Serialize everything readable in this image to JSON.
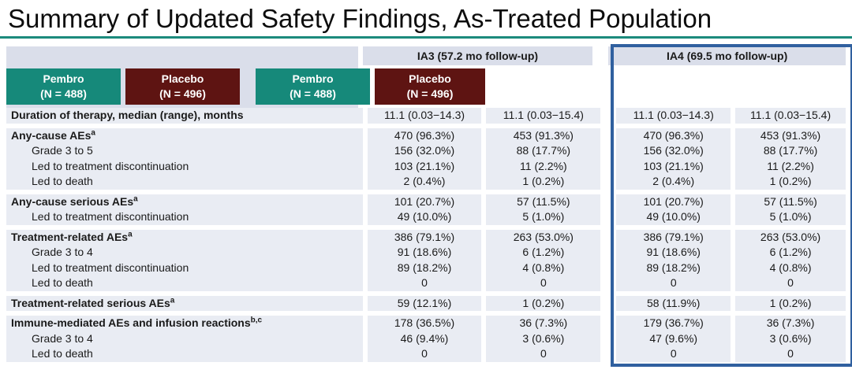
{
  "title": "Summary of Updated Safety Findings, As-Treated Population",
  "colors": {
    "title_rule_teal": "#1b8a7c",
    "pembro_teal": "#16897a",
    "placebo_maroon": "#5e1412",
    "ia4_highlight_blue": "#30609f",
    "row_bg": "#e9ecf3",
    "header_band_bg": "#dadeea"
  },
  "header": {
    "ia3_label": "IA3 (57.2 mo follow-up)",
    "ia4_label": "IA4 (69.5 mo follow-up)",
    "subcolumns": [
      {
        "name": "Pembro",
        "n": "(N = 488)"
      },
      {
        "name": "Placebo",
        "n": "(N = 496)"
      },
      {
        "name": "Pembro",
        "n": "(N = 488)"
      },
      {
        "name": "Placebo",
        "n": "(N = 496)"
      }
    ]
  },
  "groups": [
    {
      "rows": [
        {
          "label": "Duration of therapy, median (range), months",
          "sup": "",
          "bold": true,
          "indent": false,
          "values": [
            "11.1 (0.03−14.3)",
            "11.1 (0.03−15.4)",
            "11.1 (0.03−14.3)",
            "11.1 (0.03−15.4)"
          ]
        }
      ]
    },
    {
      "rows": [
        {
          "label": "Any-cause AEs",
          "sup": "a",
          "bold": true,
          "indent": false,
          "values": [
            "470 (96.3%)",
            "453 (91.3%)",
            "470 (96.3%)",
            "453 (91.3%)"
          ]
        },
        {
          "label": "Grade 3 to 5",
          "sup": "",
          "bold": false,
          "indent": true,
          "values": [
            "156 (32.0%)",
            "88 (17.7%)",
            "156 (32.0%)",
            "88 (17.7%)"
          ]
        },
        {
          "label": "Led to treatment discontinuation",
          "sup": "",
          "bold": false,
          "indent": true,
          "values": [
            "103 (21.1%)",
            "11 (2.2%)",
            "103 (21.1%)",
            "11 (2.2%)"
          ]
        },
        {
          "label": "Led to death",
          "sup": "",
          "bold": false,
          "indent": true,
          "values": [
            "2 (0.4%)",
            "1 (0.2%)",
            "2 (0.4%)",
            "1 (0.2%)"
          ]
        }
      ]
    },
    {
      "rows": [
        {
          "label": "Any-cause serious AEs",
          "sup": "a",
          "bold": true,
          "indent": false,
          "values": [
            "101 (20.7%)",
            "57 (11.5%)",
            "101 (20.7%)",
            "57 (11.5%)"
          ]
        },
        {
          "label": "Led to treatment discontinuation",
          "sup": "",
          "bold": false,
          "indent": true,
          "values": [
            "49 (10.0%)",
            "5 (1.0%)",
            "49 (10.0%)",
            "5 (1.0%)"
          ]
        }
      ]
    },
    {
      "rows": [
        {
          "label": "Treatment-related AEs",
          "sup": "a",
          "bold": true,
          "indent": false,
          "values": [
            "386 (79.1%)",
            "263 (53.0%)",
            "386 (79.1%)",
            "263 (53.0%)"
          ]
        },
        {
          "label": "Grade 3 to 4",
          "sup": "",
          "bold": false,
          "indent": true,
          "values": [
            "91 (18.6%)",
            "6 (1.2%)",
            "91 (18.6%)",
            "6 (1.2%)"
          ]
        },
        {
          "label": "Led to treatment discontinuation",
          "sup": "",
          "bold": false,
          "indent": true,
          "values": [
            "89 (18.2%)",
            "4 (0.8%)",
            "89 (18.2%)",
            "4 (0.8%)"
          ]
        },
        {
          "label": "Led to death",
          "sup": "",
          "bold": false,
          "indent": true,
          "values": [
            "0",
            "0",
            "0",
            "0"
          ]
        }
      ]
    },
    {
      "rows": [
        {
          "label": "Treatment-related serious AEs",
          "sup": "a",
          "bold": true,
          "indent": false,
          "values": [
            "59 (12.1%)",
            "1 (0.2%)",
            "58 (11.9%)",
            "1 (0.2%)"
          ]
        }
      ]
    },
    {
      "rows": [
        {
          "label": "Immune-mediated AEs and infusion reactions",
          "sup": "b,c",
          "bold": true,
          "indent": false,
          "values": [
            "178 (36.5%)",
            "36 (7.3%)",
            "179 (36.7%)",
            "36 (7.3%)"
          ]
        },
        {
          "label": "Grade 3 to 4",
          "sup": "",
          "bold": false,
          "indent": true,
          "values": [
            "46 (9.4%)",
            "3 (0.6%)",
            "47 (9.6%)",
            "3 (0.6%)"
          ]
        },
        {
          "label": "Led to death",
          "sup": "",
          "bold": false,
          "indent": true,
          "values": [
            "0",
            "0",
            "0",
            "0"
          ]
        }
      ]
    }
  ]
}
